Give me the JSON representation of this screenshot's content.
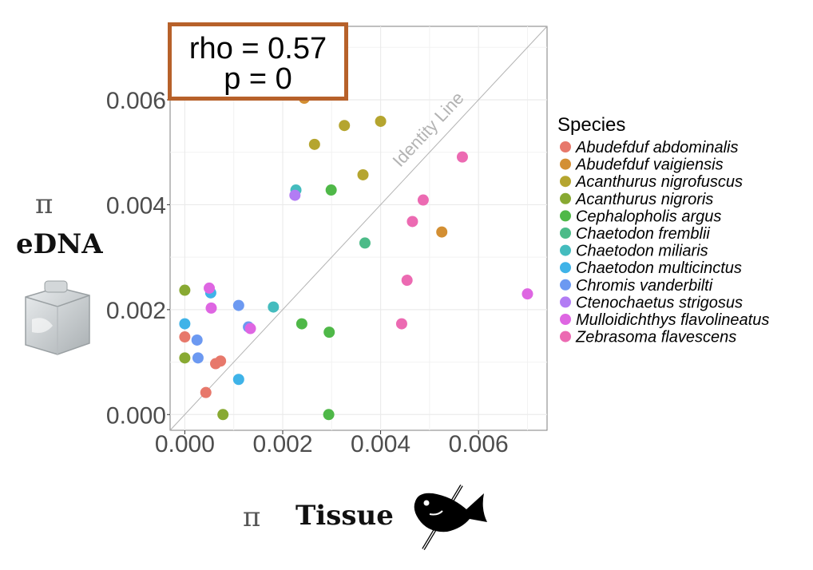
{
  "chart_data": {
    "type": "scatter",
    "title": "",
    "xlabel": "Tissue",
    "ylabel": "eDNA",
    "x_symbol": "π",
    "y_symbol": "π",
    "xlim": [
      -0.0003,
      0.0074
    ],
    "ylim": [
      -0.0003,
      0.0074
    ],
    "x_ticks": [
      "0.000",
      "0.002",
      "0.004",
      "0.006"
    ],
    "y_ticks": [
      "0.000",
      "0.002",
      "0.004",
      "0.006"
    ],
    "grid": true,
    "identity_line_label": "Identity Line",
    "stats": {
      "rho": "rho = 0.57",
      "p": "p = 0"
    },
    "legend_title": "Species",
    "legend_position": "right",
    "series": [
      {
        "name": "Abudefduf abdominalis",
        "color": "#e7786b",
        "x": [
          0.0,
          0.00043,
          0.00063,
          0.00073
        ],
        "y": [
          0.00148,
          0.00042,
          0.00097,
          0.00102
        ]
      },
      {
        "name": "Abudefduf vaigiensis",
        "color": "#d38f33",
        "x": [
          0.00244,
          0.00525
        ],
        "y": [
          0.00603,
          0.00348
        ]
      },
      {
        "name": "Acanthurus nigrofuscus",
        "color": "#b5a52f",
        "x": [
          0.00265,
          0.00326,
          0.00364,
          0.004
        ],
        "y": [
          0.00515,
          0.00551,
          0.00457,
          0.00559
        ]
      },
      {
        "name": "Acanthurus nigroris",
        "color": "#88a932",
        "x": [
          0.0,
          0.0,
          0.00078
        ],
        "y": [
          0.00237,
          0.00108,
          0.0
        ]
      },
      {
        "name": "Cephalopholis argus",
        "color": "#4fb848",
        "x": [
          0.00239,
          0.00295,
          0.00294,
          0.00299
        ],
        "y": [
          0.00173,
          0.00157,
          0.0,
          0.00428
        ]
      },
      {
        "name": "Chaetodon fremblii",
        "color": "#4cbb88",
        "x": [
          0.00368
        ],
        "y": [
          0.00327
        ]
      },
      {
        "name": "Chaetodon miliaris",
        "color": "#44bcbe",
        "x": [
          0.00227,
          0.00181
        ],
        "y": [
          0.00428,
          0.00205
        ]
      },
      {
        "name": "Chaetodon multicinctus",
        "color": "#3fb3e8",
        "x": [
          0.0,
          0.00053,
          0.0011
        ],
        "y": [
          0.00173,
          0.00232,
          0.00067
        ]
      },
      {
        "name": "Chromis vanderbilti",
        "color": "#6c99f1",
        "x": [
          0.00025,
          0.00027,
          0.0011,
          0.0013
        ],
        "y": [
          0.00142,
          0.00108,
          0.00208,
          0.00167
        ]
      },
      {
        "name": "Ctenochaetus strigosus",
        "color": "#b27cf4",
        "x": [
          0.00225
        ],
        "y": [
          0.00418
        ]
      },
      {
        "name": "Mulloidichthys flavolineatus",
        "color": "#de66e2",
        "x": [
          0.0005,
          0.00054,
          0.00134,
          0.007
        ],
        "y": [
          0.00241,
          0.00203,
          0.00164,
          0.0023
        ]
      },
      {
        "name": "Zebrasoma flavescens",
        "color": "#ec6ab2",
        "x": [
          0.00443,
          0.00454,
          0.00465,
          0.00487,
          0.00567
        ],
        "y": [
          0.00173,
          0.00256,
          0.00368,
          0.00409,
          0.00491
        ]
      }
    ]
  }
}
